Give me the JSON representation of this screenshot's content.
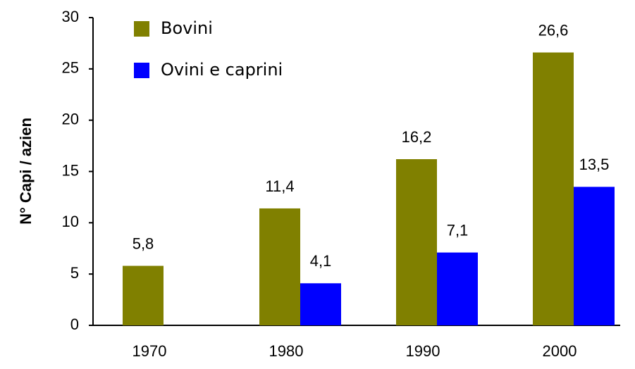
{
  "chart_data": {
    "type": "bar",
    "y_label": "N° Capi / azien",
    "categories": [
      "1970",
      "1980",
      "1990",
      "2000"
    ],
    "series": [
      {
        "name": "Bovini",
        "color": "#808000",
        "values": [
          5.8,
          11.4,
          16.2,
          26.6
        ],
        "value_labels": [
          "5,8",
          "11,4",
          "16,2",
          "26,6"
        ]
      },
      {
        "name": "Ovini e caprini",
        "color": "#0000ff",
        "values": [
          null,
          4.1,
          7.1,
          13.5
        ],
        "value_labels": [
          null,
          "4,1",
          "7,1",
          "13,5"
        ]
      }
    ],
    "ylim": [
      0,
      30
    ],
    "yticks": [
      0,
      5,
      10,
      15,
      20,
      25,
      30
    ],
    "grid": false,
    "legend": "top-left"
  }
}
